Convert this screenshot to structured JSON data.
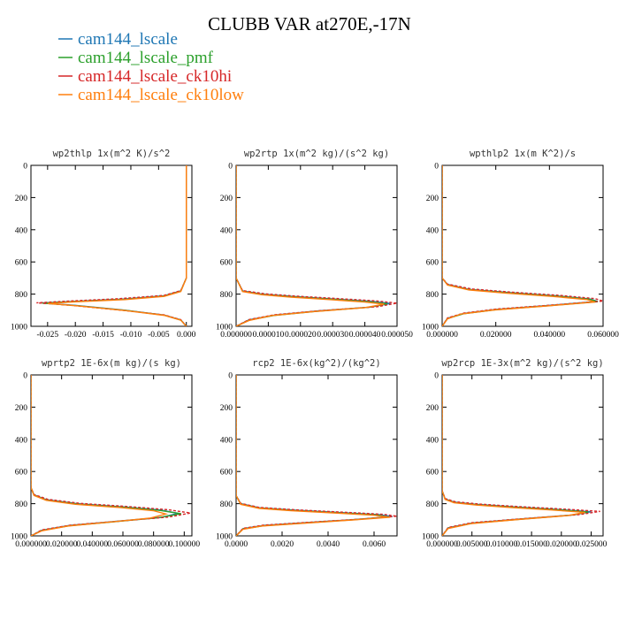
{
  "figure": {
    "title": "CLUBB VAR at270E,-17N"
  },
  "legend": [
    {
      "label": "cam144_lscale",
      "color": "#1f77b4"
    },
    {
      "label": "cam144_lscale_pmf",
      "color": "#2ca02c"
    },
    {
      "label": "cam144_lscale_ck10hi",
      "color": "#d62728"
    },
    {
      "label": "cam144_lscale_ck10low",
      "color": "#ff7f0e"
    }
  ],
  "chart_data": [
    {
      "type": "line",
      "title": "wp2thlp  1x(m^2 K)/s^2",
      "xlim": [
        -0.028,
        0.001
      ],
      "ylim": [
        1000,
        0
      ],
      "xticks": [
        -0.025,
        -0.02,
        -0.015,
        -0.01,
        -0.005,
        0.0
      ],
      "xtick_labels": [
        "-0.025",
        "-0.020",
        "-0.015",
        "-0.010",
        "-0.005",
        "0.000"
      ],
      "yticks": [
        0,
        200,
        400,
        600,
        800,
        1000
      ],
      "ytick_labels": [
        "0",
        "200",
        "400",
        "600",
        "800",
        "1000"
      ],
      "series": [
        {
          "name": "cam144_lscale",
          "x": [
            0.0,
            0.0,
            0.0,
            -0.001,
            -0.004,
            -0.011,
            -0.02,
            -0.026,
            -0.02,
            -0.011,
            -0.004,
            -0.001,
            0.0
          ],
          "y": [
            0,
            400,
            700,
            780,
            810,
            830,
            845,
            855,
            870,
            900,
            930,
            960,
            1000
          ]
        },
        {
          "name": "cam144_lscale_pmf",
          "x": [
            0.0,
            0.0,
            0.0,
            -0.001,
            -0.004,
            -0.011,
            -0.02,
            -0.026,
            -0.02,
            -0.011,
            -0.004,
            -0.001,
            0.0
          ],
          "y": [
            0,
            400,
            700,
            782,
            812,
            832,
            846,
            856,
            871,
            901,
            931,
            961,
            1000
          ]
        },
        {
          "name": "cam144_lscale_ck10hi",
          "x": [
            0.0,
            0.0,
            0.0,
            -0.001,
            -0.004,
            -0.012,
            -0.021,
            -0.027,
            -0.021,
            -0.012,
            -0.004,
            -0.001,
            0.0
          ],
          "y": [
            0,
            400,
            700,
            778,
            808,
            828,
            843,
            854,
            869,
            899,
            929,
            959,
            1000
          ]
        },
        {
          "name": "cam144_lscale_ck10low",
          "x": [
            0.0,
            0.0,
            0.0,
            -0.001,
            -0.004,
            -0.011,
            -0.02,
            -0.025,
            -0.02,
            -0.011,
            -0.004,
            -0.001,
            0.0
          ],
          "y": [
            0,
            400,
            700,
            784,
            814,
            834,
            848,
            858,
            872,
            902,
            932,
            962,
            1000
          ]
        }
      ]
    },
    {
      "type": "line",
      "title": "wp2rtp  1x(m^2 kg)/(s^2 kg)",
      "xlim": [
        0.0,
        5e-05
      ],
      "ylim": [
        1000,
        0
      ],
      "xticks": [
        0.0,
        1e-05,
        2e-05,
        3e-05,
        4e-05,
        5e-05
      ],
      "xtick_labels": [
        "0.000000",
        "0.000010",
        "0.000020",
        "0.000030",
        "0.000040",
        "0.000050"
      ],
      "yticks": [
        0,
        200,
        400,
        600,
        800,
        1000
      ],
      "ytick_labels": [
        "0",
        "200",
        "400",
        "600",
        "800",
        "1000"
      ],
      "series": [
        {
          "name": "cam144_lscale",
          "x": [
            0.0,
            0.0,
            2e-06,
            8e-06,
            1.8e-05,
            3e-05,
            4.2e-05,
            4.8e-05,
            4.2e-05,
            2.5e-05,
            1.2e-05,
            4e-06,
            0.0
          ],
          "y": [
            0,
            700,
            780,
            800,
            815,
            830,
            845,
            858,
            880,
            905,
            930,
            960,
            1000
          ]
        },
        {
          "name": "cam144_lscale_pmf",
          "x": [
            0.0,
            0.0,
            2e-06,
            8e-06,
            1.8e-05,
            3e-05,
            4.1e-05,
            4.7e-05,
            4.1e-05,
            2.5e-05,
            1.2e-05,
            4e-06,
            0.0
          ],
          "y": [
            0,
            700,
            782,
            802,
            817,
            832,
            847,
            860,
            882,
            907,
            932,
            962,
            1000
          ]
        },
        {
          "name": "cam144_lscale_ck10hi",
          "x": [
            0.0,
            0.0,
            2e-06,
            9e-06,
            1.9e-05,
            3.2e-05,
            4.4e-05,
            5e-05,
            4.4e-05,
            2.6e-05,
            1.2e-05,
            4e-06,
            0.0
          ],
          "y": [
            0,
            700,
            778,
            798,
            813,
            828,
            843,
            856,
            878,
            903,
            928,
            958,
            1000
          ]
        },
        {
          "name": "cam144_lscale_ck10low",
          "x": [
            0.0,
            0.0,
            2e-06,
            8e-06,
            1.7e-05,
            2.9e-05,
            4e-05,
            4.6e-05,
            4e-05,
            2.4e-05,
            1.1e-05,
            4e-06,
            0.0
          ],
          "y": [
            0,
            700,
            784,
            804,
            819,
            834,
            849,
            862,
            884,
            909,
            934,
            964,
            1000
          ]
        }
      ]
    },
    {
      "type": "line",
      "title": "wpthlp2  1x(m K^2)/s",
      "xlim": [
        0.0,
        0.06
      ],
      "ylim": [
        1000,
        0
      ],
      "xticks": [
        0.0,
        0.02,
        0.04,
        0.06
      ],
      "xtick_labels": [
        "0.000000",
        "0.020000",
        "0.040000",
        "0.060000"
      ],
      "yticks": [
        0,
        200,
        400,
        600,
        800,
        1000
      ],
      "ytick_labels": [
        "0",
        "200",
        "400",
        "600",
        "800",
        "1000"
      ],
      "series": [
        {
          "name": "cam144_lscale",
          "x": [
            0.0,
            0.0,
            0.002,
            0.01,
            0.025,
            0.042,
            0.055,
            0.058,
            0.04,
            0.02,
            0.008,
            0.002,
            0.0
          ],
          "y": [
            0,
            700,
            740,
            770,
            790,
            810,
            830,
            845,
            870,
            895,
            920,
            950,
            1000
          ]
        },
        {
          "name": "cam144_lscale_pmf",
          "x": [
            0.0,
            0.0,
            0.002,
            0.01,
            0.025,
            0.042,
            0.055,
            0.058,
            0.04,
            0.02,
            0.008,
            0.002,
            0.0
          ],
          "y": [
            0,
            700,
            742,
            772,
            792,
            812,
            832,
            847,
            872,
            897,
            922,
            952,
            1000
          ]
        },
        {
          "name": "cam144_lscale_ck10hi",
          "x": [
            0.0,
            0.0,
            0.002,
            0.011,
            0.026,
            0.044,
            0.057,
            0.06,
            0.041,
            0.02,
            0.008,
            0.002,
            0.0
          ],
          "y": [
            0,
            700,
            738,
            768,
            788,
            808,
            828,
            843,
            868,
            893,
            918,
            948,
            1000
          ]
        },
        {
          "name": "cam144_lscale_ck10low",
          "x": [
            0.0,
            0.0,
            0.002,
            0.01,
            0.024,
            0.041,
            0.054,
            0.057,
            0.039,
            0.019,
            0.007,
            0.002,
            0.0
          ],
          "y": [
            0,
            700,
            744,
            774,
            794,
            814,
            834,
            849,
            874,
            899,
            924,
            954,
            1000
          ]
        }
      ]
    },
    {
      "type": "line",
      "title": "wprtp2  1E-6x(m kg)/(s kg)",
      "xlim": [
        0.0,
        0.105
      ],
      "ylim": [
        1000,
        0
      ],
      "xticks": [
        0.0,
        0.02,
        0.04,
        0.06,
        0.08,
        0.1
      ],
      "xtick_labels": [
        "0.000000",
        "0.020000",
        "0.040000",
        "0.060000",
        "0.080000",
        "0.100000"
      ],
      "yticks": [
        0,
        200,
        400,
        600,
        800,
        1000
      ],
      "ytick_labels": [
        "0",
        "200",
        "400",
        "600",
        "800",
        "1000"
      ],
      "series": [
        {
          "name": "cam144_lscale",
          "x": [
            0.0,
            0.0,
            0.002,
            0.01,
            0.03,
            0.06,
            0.085,
            0.096,
            0.085,
            0.055,
            0.025,
            0.007,
            0.0
          ],
          "y": [
            0,
            700,
            745,
            775,
            800,
            820,
            840,
            860,
            885,
            910,
            935,
            965,
            1000
          ]
        },
        {
          "name": "cam144_lscale_pmf",
          "x": [
            0.0,
            0.0,
            0.002,
            0.01,
            0.03,
            0.06,
            0.084,
            0.098,
            0.083,
            0.055,
            0.025,
            0.007,
            0.0
          ],
          "y": [
            0,
            700,
            747,
            777,
            802,
            822,
            842,
            862,
            887,
            912,
            937,
            967,
            1000
          ]
        },
        {
          "name": "cam144_lscale_ck10hi",
          "x": [
            0.0,
            0.0,
            0.002,
            0.011,
            0.032,
            0.064,
            0.09,
            0.104,
            0.09,
            0.058,
            0.026,
            0.007,
            0.0
          ],
          "y": [
            0,
            700,
            743,
            773,
            798,
            818,
            838,
            858,
            883,
            908,
            933,
            963,
            1000
          ]
        },
        {
          "name": "cam144_lscale_ck10low",
          "x": [
            0.0,
            0.0,
            0.002,
            0.01,
            0.029,
            0.058,
            0.08,
            0.088,
            0.078,
            0.052,
            0.024,
            0.007,
            0.0
          ],
          "y": [
            0,
            700,
            749,
            779,
            804,
            824,
            844,
            864,
            889,
            914,
            939,
            969,
            1000
          ]
        }
      ]
    },
    {
      "type": "line",
      "title": "rcp2  1E-6x(kg^2)/(kg^2)",
      "xlim": [
        0.0,
        0.007
      ],
      "ylim": [
        1000,
        0
      ],
      "xticks": [
        0.0,
        0.002,
        0.004,
        0.006
      ],
      "xtick_labels": [
        "0.0000",
        "0.0020",
        "0.0040",
        "0.0060"
      ],
      "yticks": [
        0,
        200,
        400,
        600,
        800,
        1000
      ],
      "ytick_labels": [
        "0",
        "200",
        "400",
        "600",
        "800",
        "1000"
      ],
      "series": [
        {
          "name": "cam144_lscale",
          "x": [
            0.0,
            0.0,
            0.0002,
            0.001,
            0.0025,
            0.0045,
            0.0062,
            0.0068,
            0.0052,
            0.003,
            0.0012,
            0.0003,
            0.0
          ],
          "y": [
            0,
            750,
            800,
            825,
            840,
            855,
            868,
            880,
            898,
            918,
            935,
            955,
            1000
          ]
        },
        {
          "name": "cam144_lscale_pmf",
          "x": [
            0.0,
            0.0,
            0.0002,
            0.001,
            0.0025,
            0.0045,
            0.0061,
            0.0066,
            0.0051,
            0.003,
            0.0012,
            0.0003,
            0.0
          ],
          "y": [
            0,
            750,
            802,
            827,
            842,
            857,
            870,
            882,
            900,
            920,
            937,
            957,
            1000
          ]
        },
        {
          "name": "cam144_lscale_ck10hi",
          "x": [
            0.0,
            0.0,
            0.0002,
            0.001,
            0.0026,
            0.0047,
            0.0064,
            0.007,
            0.0054,
            0.0031,
            0.0012,
            0.0003,
            0.0
          ],
          "y": [
            0,
            750,
            798,
            823,
            838,
            853,
            866,
            878,
            896,
            916,
            933,
            953,
            1000
          ]
        },
        {
          "name": "cam144_lscale_ck10low",
          "x": [
            0.0,
            0.0,
            0.0002,
            0.001,
            0.0024,
            0.0044,
            0.006,
            0.0067,
            0.005,
            0.0029,
            0.0011,
            0.0003,
            0.0
          ],
          "y": [
            0,
            750,
            804,
            829,
            844,
            859,
            872,
            884,
            902,
            922,
            939,
            959,
            1000
          ]
        }
      ]
    },
    {
      "type": "line",
      "title": "wp2rcp  1E-3x(m^2 kg)/(s^2 kg)",
      "xlim": [
        0.0,
        0.027
      ],
      "ylim": [
        1000,
        0
      ],
      "xticks": [
        0.0,
        0.005,
        0.01,
        0.015,
        0.02,
        0.025
      ],
      "xtick_labels": [
        "0.000000",
        "0.005000",
        "0.010000",
        "0.015000",
        "0.020000",
        "0.025000"
      ],
      "yticks": [
        0,
        200,
        400,
        600,
        800,
        1000
      ],
      "ytick_labels": [
        "0",
        "200",
        "400",
        "600",
        "800",
        "1000"
      ],
      "series": [
        {
          "name": "cam144_lscale",
          "x": [
            0.0,
            0.0,
            0.0005,
            0.002,
            0.006,
            0.012,
            0.019,
            0.025,
            0.022,
            0.013,
            0.005,
            0.001,
            0.0
          ],
          "y": [
            0,
            720,
            770,
            790,
            805,
            820,
            835,
            850,
            870,
            895,
            920,
            950,
            1000
          ]
        },
        {
          "name": "cam144_lscale_pmf",
          "x": [
            0.0,
            0.0,
            0.0005,
            0.002,
            0.006,
            0.012,
            0.019,
            0.0245,
            0.0215,
            0.013,
            0.005,
            0.001,
            0.0
          ],
          "y": [
            0,
            720,
            772,
            792,
            807,
            822,
            837,
            852,
            872,
            897,
            922,
            952,
            1000
          ]
        },
        {
          "name": "cam144_lscale_ck10hi",
          "x": [
            0.0,
            0.0,
            0.0005,
            0.0022,
            0.0065,
            0.0128,
            0.0202,
            0.0265,
            0.023,
            0.0135,
            0.005,
            0.001,
            0.0
          ],
          "y": [
            0,
            720,
            768,
            788,
            803,
            818,
            833,
            848,
            868,
            893,
            918,
            948,
            1000
          ]
        },
        {
          "name": "cam144_lscale_ck10low",
          "x": [
            0.0,
            0.0,
            0.0005,
            0.002,
            0.0058,
            0.0115,
            0.0183,
            0.024,
            0.021,
            0.0125,
            0.0048,
            0.001,
            0.0
          ],
          "y": [
            0,
            720,
            774,
            794,
            809,
            824,
            839,
            854,
            874,
            899,
            924,
            954,
            1000
          ]
        }
      ]
    }
  ]
}
